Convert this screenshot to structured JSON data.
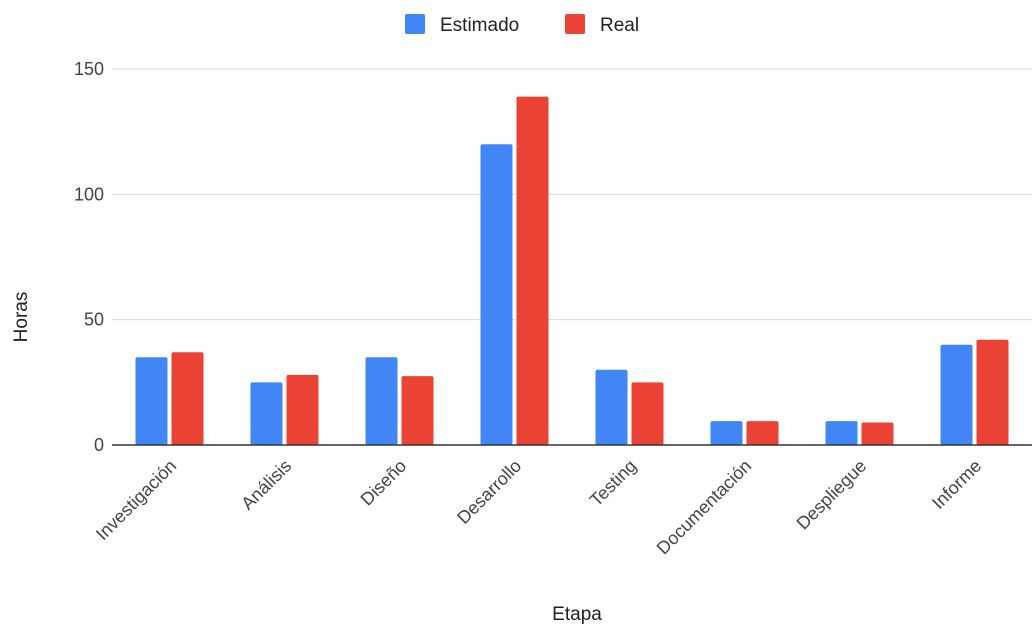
{
  "chart_data": {
    "type": "bar",
    "title": "",
    "xlabel": "Etapa",
    "ylabel": "Horas",
    "ylim": [
      0,
      150
    ],
    "yticks": [
      0,
      50,
      100,
      150
    ],
    "grid": true,
    "legend_position": "top-center",
    "categories": [
      "Investigación",
      "Análisis",
      "Diseño",
      "Desarrollo",
      "Testing",
      "Documentación",
      "Despliegue",
      "Informe"
    ],
    "series": [
      {
        "name": "Estimado",
        "color": "#4285F4",
        "values": [
          35,
          25,
          35,
          120,
          30,
          9.5,
          9.5,
          40
        ]
      },
      {
        "name": "Real",
        "color": "#EA4335",
        "values": [
          37,
          28,
          27.5,
          139,
          25,
          9.5,
          9,
          42
        ]
      }
    ]
  }
}
